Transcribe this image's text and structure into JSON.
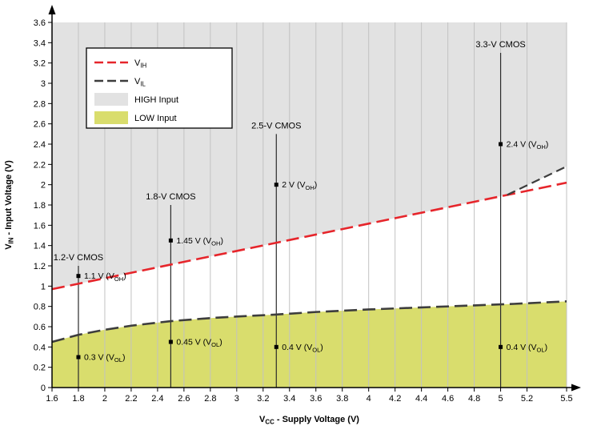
{
  "chart_data": {
    "type": "line",
    "title": "",
    "xlabel": "V{CC} - Supply Voltage (V)",
    "ylabel": "V{IN} - Input Voltage (V)",
    "xlim": [
      1.6,
      5.5
    ],
    "ylim": [
      0,
      3.6
    ],
    "x_ticks": [
      1.6,
      1.8,
      2,
      2.2,
      2.4,
      2.6,
      2.8,
      3,
      3.2,
      3.4,
      3.6,
      3.8,
      4,
      4.2,
      4.4,
      4.6,
      4.8,
      5,
      5.2,
      5.5
    ],
    "y_ticks": [
      0,
      0.2,
      0.4,
      0.6,
      0.8,
      1,
      1.2,
      1.4,
      1.6,
      1.8,
      2,
      2.2,
      2.4,
      2.6,
      2.8,
      3,
      3.2,
      3.4,
      3.6
    ],
    "grid": "vertical",
    "colors": {
      "vih": "#e6252b",
      "vil": "#3d3d3d",
      "high_fill": "#e2e2e2",
      "low_fill": "#d9dd6d",
      "grid": "#c2c2c2",
      "axis": "#000000",
      "cmos_line": "#2b2b2b"
    },
    "series": [
      {
        "name": "V{IH}",
        "role": "vih",
        "points": [
          [
            1.6,
            0.97
          ],
          [
            5.5,
            2.02
          ]
        ]
      },
      {
        "name": "V{IL}",
        "role": "vil",
        "points": [
          [
            1.6,
            0.45
          ],
          [
            1.8,
            0.52
          ],
          [
            2,
            0.57
          ],
          [
            2.2,
            0.61
          ],
          [
            2.5,
            0.655
          ],
          [
            2.8,
            0.685
          ],
          [
            3,
            0.7
          ],
          [
            3.3,
            0.72
          ],
          [
            3.6,
            0.745
          ],
          [
            4,
            0.77
          ],
          [
            4.4,
            0.79
          ],
          [
            4.8,
            0.81
          ],
          [
            5.1,
            0.825
          ],
          [
            5.5,
            0.85
          ]
        ]
      },
      {
        "name": "",
        "role": "vih-extension",
        "points": [
          [
            5.05,
            1.9
          ],
          [
            5.5,
            2.18
          ]
        ]
      }
    ],
    "regions": [
      {
        "name": "HIGH Input",
        "fill": "high_fill",
        "side": "above",
        "boundary": [
          [
            1.6,
            0.97
          ],
          [
            5.05,
            1.9
          ],
          [
            5.5,
            2.18
          ]
        ]
      },
      {
        "name": "LOW Input",
        "fill": "low_fill",
        "side": "below",
        "boundary": "vil"
      }
    ],
    "cmos_markers": [
      {
        "x": 1.8,
        "top": 1.2,
        "label": "1.2-V CMOS",
        "points": [
          {
            "y": 1.1,
            "label": "1.1 V (V{OH})"
          },
          {
            "y": 0.3,
            "label": "0.3 V (V{OL})"
          }
        ]
      },
      {
        "x": 2.5,
        "top": 1.8,
        "label": "1.8-V CMOS",
        "points": [
          {
            "y": 1.45,
            "label": "1.45 V (V{OH})"
          },
          {
            "y": 0.45,
            "label": "0.45 V (V{OL})"
          }
        ]
      },
      {
        "x": 3.3,
        "top": 2.5,
        "label": "2.5-V CMOS",
        "points": [
          {
            "y": 2,
            "label": "2 V (V{OH})"
          },
          {
            "y": 0.4,
            "label": "0.4 V (V{OL})"
          }
        ]
      },
      {
        "x": 5,
        "top": 3.3,
        "label": "3.3-V CMOS",
        "points": [
          {
            "y": 2.4,
            "label": "2.4 V (V{OH})"
          },
          {
            "y": 0.4,
            "label": "0.4 V (V{OL})"
          }
        ]
      }
    ],
    "legend": {
      "position": "top-left",
      "items": [
        {
          "label": "V{IH}",
          "swatch": "line",
          "color": "vih"
        },
        {
          "label": "V{IL}",
          "swatch": "line",
          "color": "vil"
        },
        {
          "label": "HIGH Input",
          "swatch": "fill",
          "color": "high_fill"
        },
        {
          "label": "LOW Input",
          "swatch": "fill",
          "color": "low_fill"
        }
      ]
    }
  }
}
